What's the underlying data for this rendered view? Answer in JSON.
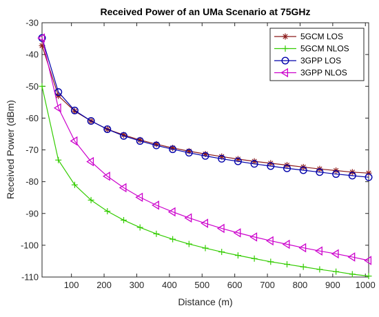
{
  "chart_data": {
    "type": "line",
    "title": "Received Power of an UMa Scenario at 75GHz",
    "xlabel": "Distance (m)",
    "ylabel": "Received Power (dBm)",
    "xlim": [
      10,
      1010
    ],
    "ylim": [
      -110,
      -30
    ],
    "xticks": [
      100,
      200,
      300,
      400,
      500,
      600,
      700,
      800,
      900,
      1000
    ],
    "yticks": [
      -110,
      -100,
      -90,
      -80,
      -70,
      -60,
      -50,
      -40,
      -30
    ],
    "grid": false,
    "legend_position": "top-right",
    "x": [
      10,
      60,
      110,
      160,
      210,
      260,
      310,
      360,
      410,
      460,
      510,
      560,
      610,
      660,
      710,
      760,
      810,
      860,
      910,
      960,
      1010
    ],
    "series": [
      {
        "name": "5GCM LOS",
        "color": "#8b1a1a",
        "marker": "asterisk",
        "values": [
          -37.2,
          -53.0,
          -57.8,
          -60.9,
          -63.5,
          -65.3,
          -66.9,
          -68.2,
          -69.4,
          -70.4,
          -71.3,
          -72.1,
          -72.9,
          -73.6,
          -74.2,
          -74.8,
          -75.4,
          -76.0,
          -76.5,
          -77.0,
          -77.3
        ]
      },
      {
        "name": "5GCM NLOS",
        "color": "#33cc00",
        "marker": "plus",
        "values": [
          -50.0,
          -73.2,
          -81.0,
          -85.8,
          -89.3,
          -92.1,
          -94.4,
          -96.4,
          -98.1,
          -99.6,
          -100.9,
          -102.1,
          -103.2,
          -104.2,
          -105.2,
          -106.0,
          -106.8,
          -107.6,
          -108.3,
          -109.1,
          -109.7
        ]
      },
      {
        "name": "3GPP LOS",
        "color": "#0000aa",
        "marker": "circle",
        "values": [
          -34.8,
          -51.8,
          -57.6,
          -60.9,
          -63.5,
          -65.6,
          -67.2,
          -68.6,
          -69.8,
          -70.9,
          -71.9,
          -72.8,
          -73.6,
          -74.4,
          -75.1,
          -75.8,
          -76.4,
          -77.0,
          -77.6,
          -78.1,
          -78.6
        ]
      },
      {
        "name": "3GPP NLOS",
        "color": "#cc00cc",
        "marker": "triangle-left",
        "values": [
          -34.8,
          -56.8,
          -67.2,
          -73.7,
          -78.3,
          -81.9,
          -84.9,
          -87.4,
          -89.5,
          -91.4,
          -93.1,
          -94.7,
          -96.1,
          -97.4,
          -98.6,
          -99.7,
          -100.8,
          -101.8,
          -102.7,
          -103.7,
          -104.8
        ]
      }
    ]
  }
}
